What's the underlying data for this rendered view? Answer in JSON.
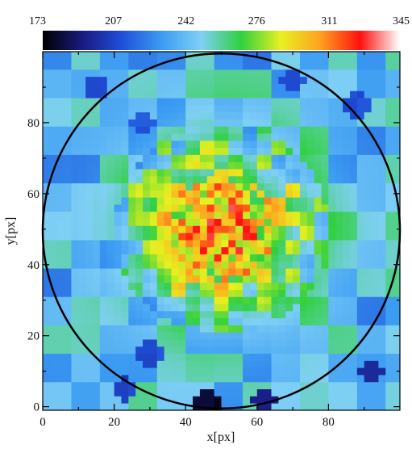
{
  "chart_data": {
    "type": "heatmap",
    "xlabel": "x[px]",
    "ylabel": "y[px]",
    "xlim": [
      0,
      100
    ],
    "ylim": [
      -1,
      100
    ],
    "x_ticks": [
      "0",
      "20",
      "40",
      "60",
      "80"
    ],
    "y_ticks": [
      "0",
      "20",
      "40",
      "60",
      "80"
    ],
    "x_tick_values": [
      0,
      20,
      40,
      60,
      80
    ],
    "y_tick_values": [
      0,
      20,
      40,
      60,
      80
    ],
    "colorbar": {
      "position": "top",
      "range": [
        173,
        345
      ],
      "tick_labels": [
        "173",
        "207",
        "242",
        "276",
        "311",
        "345"
      ],
      "tick_values": [
        173,
        207,
        242,
        276,
        311,
        345
      ],
      "stops": [
        "#000000",
        "#1a1a80",
        "#1f4fd9",
        "#3c9cf2",
        "#7fd0f5",
        "#30d040",
        "#e8f020",
        "#ffa020",
        "#ff1010",
        "#ffffff"
      ]
    },
    "circle": {
      "cx": 50,
      "cy": 49.5,
      "r": 50
    },
    "field": {
      "center": [
        50,
        50
      ],
      "peak_value": 310,
      "background_value": 240,
      "low_spots": [
        {
          "x": 46,
          "y": 1,
          "value": 175
        },
        {
          "x": 62,
          "y": 2,
          "value": 185
        },
        {
          "x": 23,
          "y": 5,
          "value": 200
        },
        {
          "x": 92,
          "y": 10,
          "value": 195
        },
        {
          "x": 30,
          "y": 15,
          "value": 205
        },
        {
          "x": 15,
          "y": 90,
          "value": 205
        },
        {
          "x": 88,
          "y": 85,
          "value": 205
        },
        {
          "x": 28,
          "y": 80,
          "value": 210
        },
        {
          "x": 70,
          "y": 92,
          "value": 208
        }
      ]
    }
  }
}
